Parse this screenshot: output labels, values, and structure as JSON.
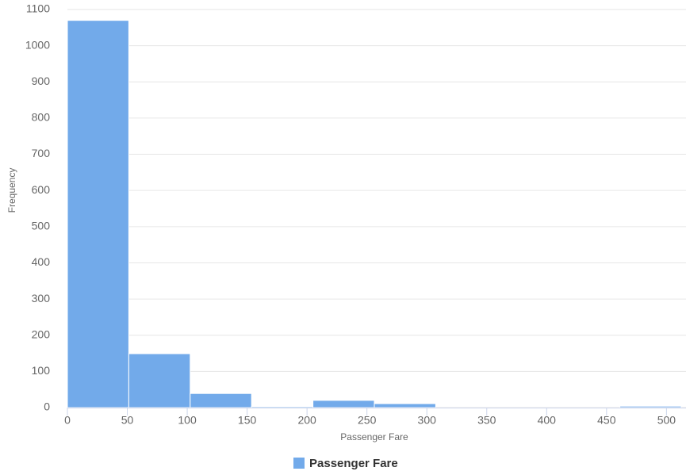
{
  "chart_data": {
    "type": "histogram",
    "x_label": "Passenger Fare",
    "y_label": "Frequency",
    "bins": [
      0,
      51.23,
      102.47,
      153.7,
      204.93,
      256.16,
      307.4,
      358.63,
      409.86,
      461.1,
      512.33
    ],
    "series": [
      {
        "name": "Passenger Fare",
        "color": "#72aaea",
        "values": [
          1070,
          149,
          39,
          3,
          20,
          11,
          0,
          0,
          0,
          4
        ]
      }
    ],
    "xlim": [
      0,
      512.33
    ],
    "xticks": [
      0,
      50,
      100,
      150,
      200,
      250,
      300,
      350,
      400,
      450,
      500
    ],
    "ylim": [
      0,
      1100
    ],
    "yticks": [
      0,
      100,
      200,
      300,
      400,
      500,
      600,
      700,
      800,
      900,
      1000,
      1100
    ],
    "grid": true,
    "legend": "bottom"
  }
}
